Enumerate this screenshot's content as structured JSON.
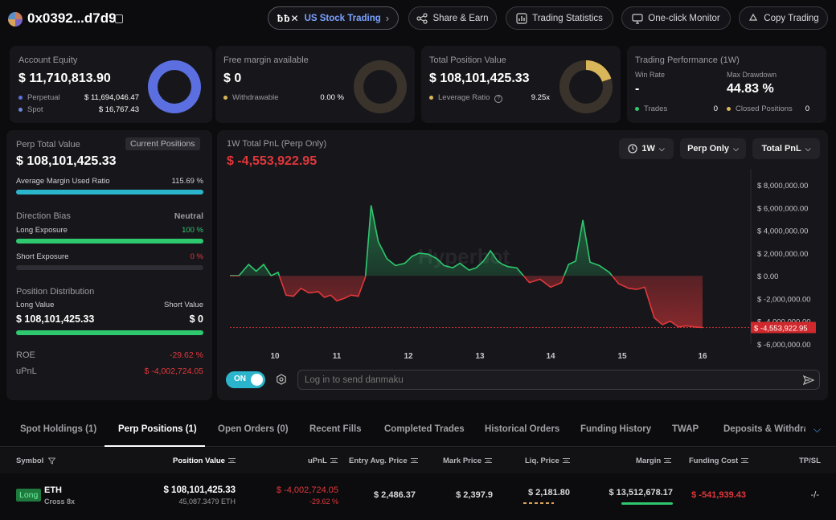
{
  "header": {
    "address": "0x0392...d7d9",
    "promo_brand": "ƀƀ✕",
    "promo_label": "US Stock Trading",
    "share_label": "Share & Earn",
    "stats_label": "Trading Statistics",
    "monitor_label": "One-click Monitor",
    "copy_label": "Copy Trading"
  },
  "account_equity": {
    "title": "Account Equity",
    "value": "$ 11,710,813.90",
    "perpetual_label": "Perpetual",
    "perpetual_value": "$ 11,694,046.47",
    "spot_label": "Spot",
    "spot_value": "$ 16,767.43",
    "colors": {
      "perpetual": "#5b6fe0",
      "spot": "#6c86d8"
    }
  },
  "free_margin": {
    "title": "Free margin available",
    "value": "$ 0",
    "withdrawable_label": "Withdrawable",
    "withdrawable_value": "0.00 %"
  },
  "total_position": {
    "title": "Total Position Value",
    "value": "$ 108,101,425.33",
    "leverage_label": "Leverage Ratio",
    "leverage_value": "9.25x",
    "leverage_fraction": 0.2
  },
  "performance": {
    "title": "Trading Performance (1W)",
    "win_rate_label": "Win Rate",
    "win_rate_value": "-",
    "max_drawdown_label": "Max Drawdown",
    "max_drawdown_value": "44.83 %",
    "trades_label": "Trades",
    "trades_value": "0",
    "closed_label": "Closed Positions",
    "closed_value": "0"
  },
  "perp_summary": {
    "title": "Perp Total Value",
    "badge": "Current Positions",
    "value": "$ 108,101,425.33",
    "margin_ratio_label": "Average Margin Used Ratio",
    "margin_ratio_value": "115.69 %",
    "margin_ratio_fraction": 1.0,
    "direction_label": "Direction Bias",
    "direction_value": "Neutral",
    "long_label": "Long Exposure",
    "long_value": "100 %",
    "long_fraction": 1.0,
    "short_label": "Short Exposure",
    "short_value": "0 %",
    "short_fraction": 0.0,
    "distribution_label": "Position Distribution",
    "long_value_label": "Long Value",
    "short_value_label": "Short Value",
    "long_amount": "$ 108,101,425.33",
    "short_amount": "$ 0",
    "roe_label": "ROE",
    "roe_value": "-29.62 %",
    "upnl_label": "uPnL",
    "upnl_value": "$ -4,002,724.05"
  },
  "pnl_chart": {
    "title": "1W Total PnL (Perp Only)",
    "value": "$ -4,553,922.95",
    "range_label": "1W",
    "filter_label": "Perp Only",
    "metric_label": "Total PnL",
    "watermark": "Hyperbot",
    "danmaku_toggle": "ON",
    "danmaku_placeholder": "Log in to send danmaku"
  },
  "chart_data": {
    "type": "area",
    "x_ticks": [
      "10",
      "11",
      "12",
      "13",
      "14",
      "15",
      "16"
    ],
    "y_ticks": [
      "$ 8,000,000.00",
      "$ 6,000,000.00",
      "$ 4,000,000.00",
      "$ 2,000,000.00",
      "$ 0.00",
      "$ -2,000,000.00",
      "$ -4,000,000.00",
      "$ -6,000,000.00"
    ],
    "ylim": [
      -6000000,
      8000000
    ],
    "x": [
      0,
      0.12,
      0.25,
      0.35,
      0.45,
      0.55,
      0.65,
      0.78,
      0.9,
      1.02,
      1.15,
      1.3,
      1.4,
      1.5,
      1.6,
      1.7,
      1.8,
      1.9,
      2.0,
      2.08,
      2.18,
      2.3,
      2.42,
      2.55,
      2.65,
      2.75,
      2.88,
      3.0,
      3.1,
      3.22,
      3.32,
      3.45,
      3.55,
      3.65,
      3.75,
      3.85,
      3.92,
      4.0,
      4.12,
      4.3,
      4.45,
      4.6,
      4.75,
      4.85,
      4.95,
      5.05,
      5.15,
      5.28,
      5.42,
      5.55,
      5.68,
      5.78,
      5.88,
      6.0,
      6.1,
      6.2,
      6.3,
      6.4,
      6.5,
      6.6
    ],
    "values": [
      0,
      0,
      1000000,
      400000,
      1000000,
      0,
      300000,
      -1700000,
      -1800000,
      -1100000,
      -1500000,
      -1400000,
      -1900000,
      -1700000,
      -2200000,
      -2000000,
      -1700000,
      -1800000,
      -100000,
      6200000,
      3000000,
      1500000,
      900000,
      1100000,
      1700000,
      2000000,
      1900000,
      1500000,
      900000,
      700000,
      1100000,
      500000,
      700000,
      1300000,
      2200000,
      1300000,
      1000000,
      800000,
      700000,
      -600000,
      -300000,
      -1000000,
      -600000,
      1000000,
      1300000,
      4900000,
      1200000,
      900000,
      300000,
      -700000,
      -1100000,
      -1200000,
      -1000000,
      -3700000,
      -4300000,
      -4000000,
      -4500000,
      -4400000,
      -4500000,
      -4553922.95
    ],
    "last_value_label": "$ -4,553,922.95",
    "colors": {
      "positive": "#2ec86f",
      "negative": "#e0373b"
    }
  },
  "tabs": [
    {
      "label": "Spot Holdings (1)"
    },
    {
      "label": "Perp Positions (1)"
    },
    {
      "label": "Open Orders (0)"
    },
    {
      "label": "Recent Fills"
    },
    {
      "label": "Completed Trades"
    },
    {
      "label": "Historical Orders"
    },
    {
      "label": "Funding History"
    },
    {
      "label": "TWAP"
    },
    {
      "label": "Deposits & Withdrav"
    }
  ],
  "table": {
    "headers": {
      "symbol": "Symbol",
      "position_value": "Position Value",
      "upnl": "uPnL",
      "entry": "Entry Avg. Price",
      "mark": "Mark Price",
      "liq": "Liq. Price",
      "margin": "Margin",
      "funding": "Funding Cost",
      "tpsl": "TP/SL"
    },
    "row": {
      "side": "Long",
      "coin": "ETH",
      "cross": "Cross 8x",
      "position_value": "$ 108,101,425.33",
      "size": "45,087.3479 ETH",
      "upnl": "$ -4,002,724.05",
      "upnl_pct": "-29.62 %",
      "entry": "$ 2,486.37",
      "mark": "$ 2,397.9",
      "liq": "$ 2,181.80",
      "margin": "$ 13,512,678.17",
      "funding": "$ -541,939.43",
      "tpsl": "-/-"
    }
  }
}
